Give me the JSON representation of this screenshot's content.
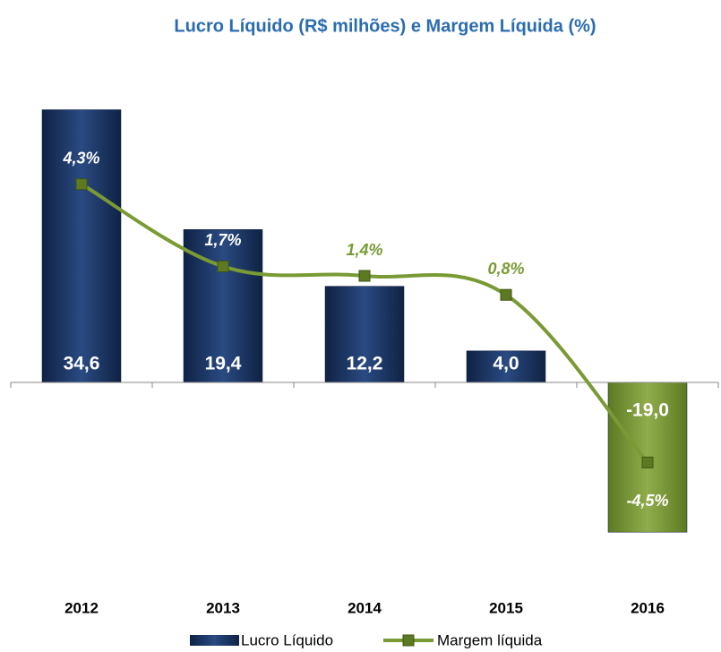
{
  "chart_data": {
    "type": "bar_line",
    "title": "Lucro Líquido (R$ milhões) e Margem Líquida (%)",
    "categories": [
      "2012",
      "2013",
      "2014",
      "2015",
      "2016"
    ],
    "series": [
      {
        "name": "Lucro Líquido",
        "type": "bar",
        "color": "#1f3a6d",
        "point_colors": [
          "#1f3a6d",
          "#1f3a6d",
          "#1f3a6d",
          "#1f3a6d",
          "#7a9a35"
        ],
        "values": [
          34.6,
          19.4,
          12.2,
          4.0,
          -19.0
        ],
        "value_labels": [
          "34,6",
          "19,4",
          "12,2",
          "4,0",
          "-19,0"
        ]
      },
      {
        "name": "Margem líquida",
        "type": "line",
        "axis": "y2",
        "color": "#7a9a35",
        "values": [
          4.3,
          1.7,
          1.4,
          0.8,
          -4.5
        ],
        "value_labels": [
          "4,3%",
          "1,7%",
          "1,4%",
          "0,8%",
          "-4,5%"
        ]
      }
    ],
    "ylim": [
      -25,
      40
    ],
    "y2lim": [
      -8.2,
      8.0
    ],
    "legend": "bottom"
  }
}
